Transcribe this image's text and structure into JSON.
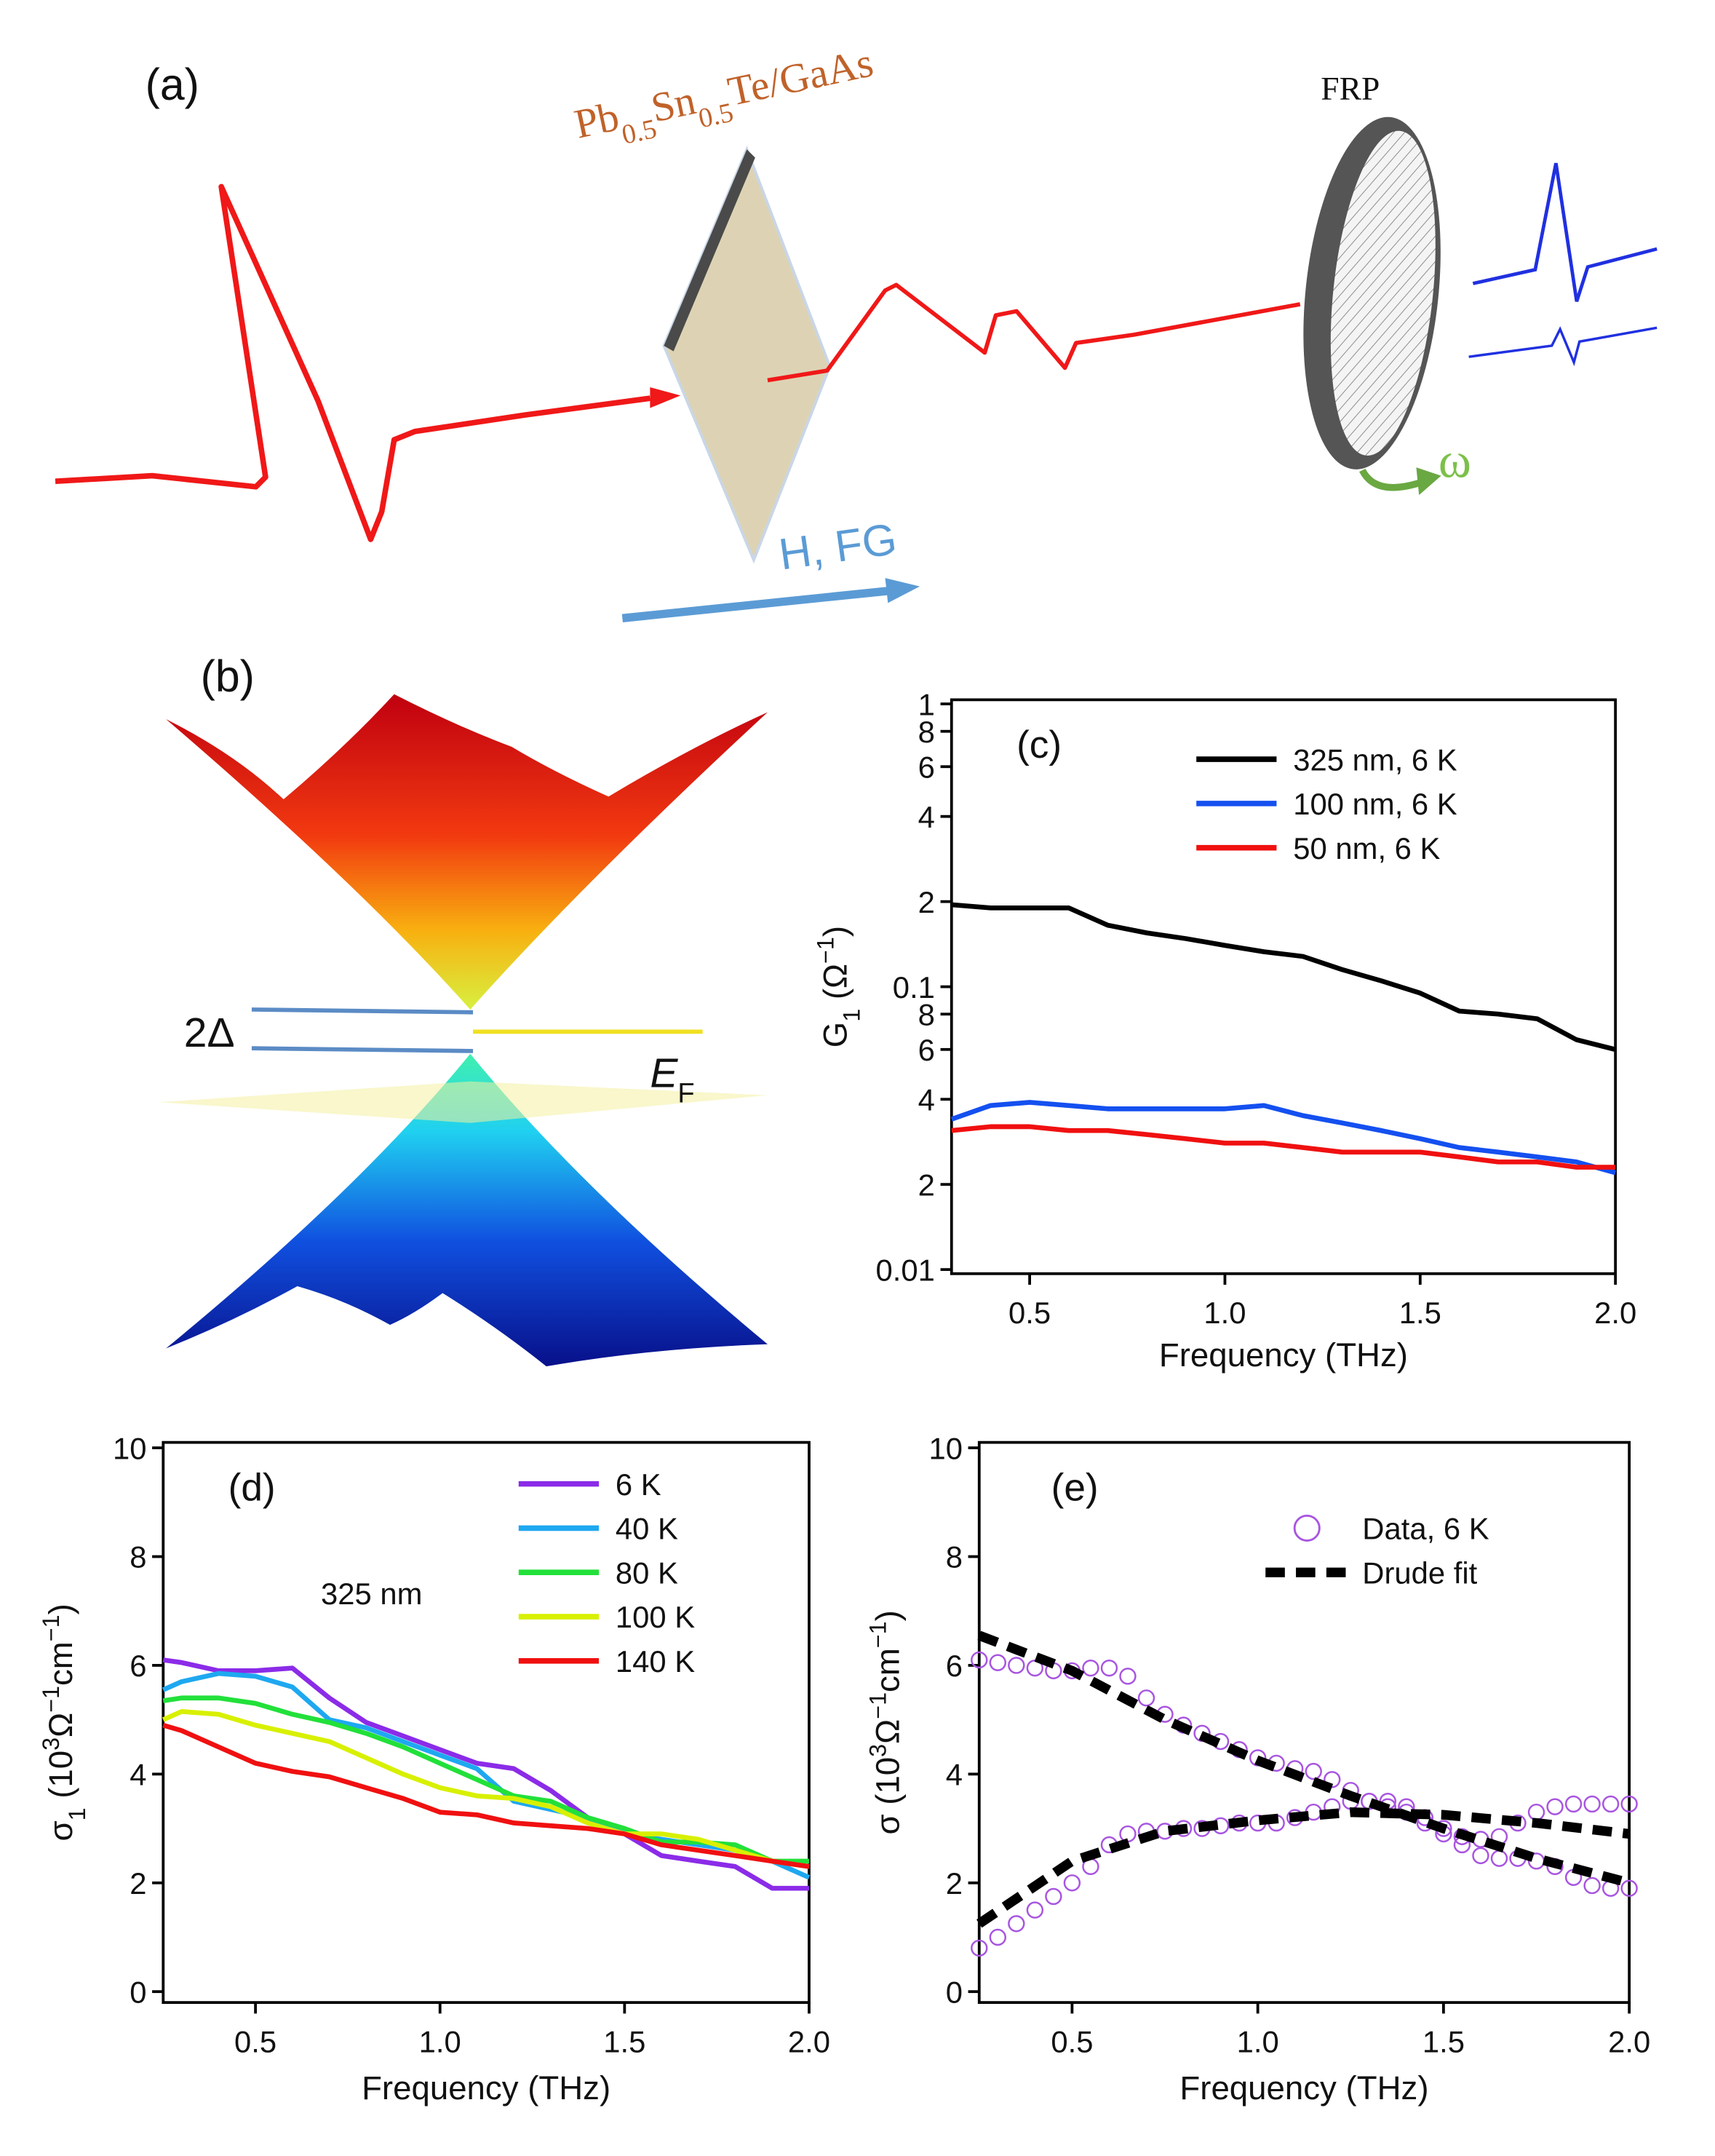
{
  "diagram_a": {
    "label": "(a)",
    "sample": [
      "Pb",
      "0.5",
      "Sn",
      "0.5",
      "Te/GaAs"
    ],
    "polarizer": "FRP",
    "field": "H, FG",
    "rotation": "ω"
  },
  "diagram_b": {
    "label": "(b)",
    "gap": "2Δ",
    "fermi": [
      "E",
      "F"
    ]
  },
  "chart_data": [
    {
      "type": "line",
      "panel_label": "(c)",
      "xlabel": "Frequency (THz)",
      "ylabel": [
        "G",
        "1",
        " (Ω",
        "−1",
        ")"
      ],
      "log_y": true,
      "xlim": [
        0.3,
        2.0
      ],
      "ylim": [
        0.01,
        1
      ],
      "xticks": [
        0.5,
        1.0,
        1.5,
        2.0
      ],
      "yticks": [
        0.01,
        {
          "value": 0.02,
          "label": "2"
        },
        {
          "value": 0.04,
          "label": "4"
        },
        {
          "value": 0.06,
          "label": "6"
        },
        {
          "value": 0.08,
          "label": "8"
        },
        0.1,
        {
          "value": 0.2,
          "label": "2"
        },
        {
          "value": 0.4,
          "label": "4"
        },
        {
          "value": 0.6,
          "label": "6"
        },
        {
          "value": 0.8,
          "label": "8"
        },
        1
      ],
      "x": [
        0.3,
        0.4,
        0.5,
        0.6,
        0.7,
        0.8,
        0.9,
        1.0,
        1.1,
        1.2,
        1.3,
        1.4,
        1.5,
        1.6,
        1.7,
        1.8,
        1.9,
        2.0
      ],
      "series": [
        {
          "name": "325 nm, 6 K",
          "color": "#000000",
          "values": [
            0.195,
            0.19,
            0.19,
            0.19,
            0.165,
            0.155,
            0.148,
            0.14,
            0.133,
            0.128,
            0.115,
            0.105,
            0.095,
            0.082,
            0.08,
            0.077,
            0.065,
            0.06
          ]
        },
        {
          "name": "100 nm, 6 K",
          "color": "#1450f0",
          "values": [
            0.034,
            0.038,
            0.039,
            0.038,
            0.037,
            0.037,
            0.037,
            0.037,
            0.038,
            0.035,
            0.033,
            0.031,
            0.029,
            0.027,
            0.026,
            0.025,
            0.024,
            0.022
          ]
        },
        {
          "name": "50 nm, 6 K",
          "color": "#f01010",
          "values": [
            0.031,
            0.032,
            0.032,
            0.031,
            0.031,
            0.03,
            0.029,
            0.028,
            0.028,
            0.027,
            0.026,
            0.026,
            0.026,
            0.025,
            0.024,
            0.024,
            0.023,
            0.023
          ]
        }
      ]
    },
    {
      "type": "line",
      "panel_label": "(d)",
      "annotation": "325 nm",
      "xlabel": "Frequency (THz)",
      "ylabel": [
        "σ",
        "1",
        " (10",
        "3",
        "Ω",
        "−1",
        "cm",
        "−1",
        ")"
      ],
      "xlim": [
        0.25,
        2.0
      ],
      "ylim": [
        -0.2,
        10.1
      ],
      "xticks": [
        0.5,
        1.0,
        1.5,
        2.0
      ],
      "yticks": [
        0,
        2,
        4,
        6,
        8,
        10
      ],
      "x": [
        0.25,
        0.3,
        0.4,
        0.5,
        0.6,
        0.7,
        0.8,
        0.9,
        1.0,
        1.1,
        1.2,
        1.3,
        1.4,
        1.5,
        1.6,
        1.7,
        1.8,
        1.9,
        2.0
      ],
      "series": [
        {
          "name": "6 K",
          "color": "#8b2be8",
          "values": [
            6.1,
            6.05,
            5.9,
            5.9,
            5.95,
            5.4,
            4.95,
            4.7,
            4.45,
            4.2,
            4.1,
            3.7,
            3.2,
            2.9,
            2.5,
            2.4,
            2.3,
            1.9,
            1.9
          ]
        },
        {
          "name": "40 K",
          "color": "#1ea8f0",
          "values": [
            5.55,
            5.7,
            5.85,
            5.8,
            5.6,
            5.0,
            4.85,
            4.6,
            4.35,
            4.1,
            3.5,
            3.35,
            3.2,
            2.9,
            2.8,
            2.7,
            2.6,
            2.4,
            2.1
          ]
        },
        {
          "name": "80 K",
          "color": "#22e03a",
          "values": [
            5.35,
            5.4,
            5.4,
            5.3,
            5.1,
            4.95,
            4.75,
            4.5,
            4.2,
            3.9,
            3.6,
            3.5,
            3.2,
            3.0,
            2.75,
            2.75,
            2.7,
            2.4,
            2.4
          ]
        },
        {
          "name": "100 K",
          "color": "#d8f000",
          "values": [
            5.0,
            5.15,
            5.1,
            4.9,
            4.75,
            4.6,
            4.3,
            4.0,
            3.75,
            3.6,
            3.55,
            3.4,
            3.1,
            2.9,
            2.9,
            2.8,
            2.6,
            2.4,
            2.3
          ]
        },
        {
          "name": "140 K",
          "color": "#f01010",
          "values": [
            4.9,
            4.8,
            4.5,
            4.2,
            4.05,
            3.95,
            3.75,
            3.55,
            3.3,
            3.25,
            3.1,
            3.05,
            3.0,
            2.9,
            2.7,
            2.6,
            2.5,
            2.4,
            2.3
          ]
        }
      ]
    },
    {
      "type": "line",
      "panel_label": "(e)",
      "xlabel": "Frequency (THz)",
      "ylabel": [
        "σ (10",
        "3",
        "Ω",
        "−1",
        "cm",
        "−1",
        ")"
      ],
      "xlim": [
        0.25,
        2.0
      ],
      "ylim": [
        -0.2,
        10.1
      ],
      "xticks": [
        0.5,
        1.0,
        1.5,
        2.0
      ],
      "yticks": [
        0,
        2,
        4,
        6,
        8,
        10
      ],
      "series": [
        {
          "name": "Data, 6 K",
          "color": "#a855e0",
          "marker": "circle",
          "x": [
            0.25,
            0.3,
            0.35,
            0.4,
            0.45,
            0.5,
            0.55,
            0.6,
            0.65,
            0.7,
            0.75,
            0.8,
            0.85,
            0.9,
            0.95,
            1.0,
            1.05,
            1.1,
            1.15,
            1.2,
            1.25,
            1.3,
            1.35,
            1.4,
            1.45,
            1.5,
            1.55,
            1.6,
            1.65,
            1.7,
            1.75,
            1.8,
            1.85,
            1.9,
            1.95,
            2.0
          ],
          "values": [
            6.1,
            6.05,
            6.0,
            5.95,
            5.9,
            5.9,
            5.95,
            5.95,
            5.8,
            5.4,
            5.1,
            4.9,
            4.75,
            4.6,
            4.45,
            4.3,
            4.2,
            4.1,
            4.05,
            3.9,
            3.7,
            3.5,
            3.4,
            3.3,
            3.1,
            2.9,
            2.7,
            2.5,
            2.45,
            2.45,
            2.4,
            2.3,
            2.1,
            1.95,
            1.9,
            1.9
          ]
        },
        {
          "color": "#a855e0",
          "marker": "circle",
          "x": [
            0.25,
            0.3,
            0.35,
            0.4,
            0.45,
            0.5,
            0.55,
            0.6,
            0.65,
            0.7,
            0.75,
            0.8,
            0.85,
            0.9,
            0.95,
            1.0,
            1.05,
            1.1,
            1.15,
            1.2,
            1.25,
            1.3,
            1.35,
            1.4,
            1.45,
            1.5,
            1.55,
            1.6,
            1.65,
            1.7,
            1.75,
            1.8,
            1.85,
            1.9,
            1.95,
            2.0
          ],
          "values": [
            0.8,
            1.0,
            1.25,
            1.5,
            1.75,
            2.0,
            2.3,
            2.7,
            2.9,
            2.95,
            2.95,
            3.0,
            3.0,
            3.05,
            3.1,
            3.1,
            3.1,
            3.2,
            3.3,
            3.4,
            3.5,
            3.5,
            3.5,
            3.4,
            3.2,
            3.0,
            2.85,
            2.8,
            2.85,
            3.1,
            3.3,
            3.4,
            3.45,
            3.45,
            3.45,
            3.45
          ]
        },
        {
          "name": "Drude fit",
          "color": "#000000",
          "dashed": true,
          "x": [
            0.25,
            0.5,
            0.75,
            1.0,
            1.25,
            1.5,
            1.75,
            2.0
          ],
          "values": [
            6.55,
            5.9,
            5.0,
            4.25,
            3.6,
            3.0,
            2.45,
            2.0
          ]
        },
        {
          "color": "#000000",
          "dashed": true,
          "x": [
            0.25,
            0.5,
            0.75,
            1.0,
            1.25,
            1.5,
            1.75,
            2.0
          ],
          "values": [
            1.25,
            2.4,
            2.95,
            3.15,
            3.3,
            3.25,
            3.1,
            2.9
          ]
        }
      ]
    }
  ]
}
